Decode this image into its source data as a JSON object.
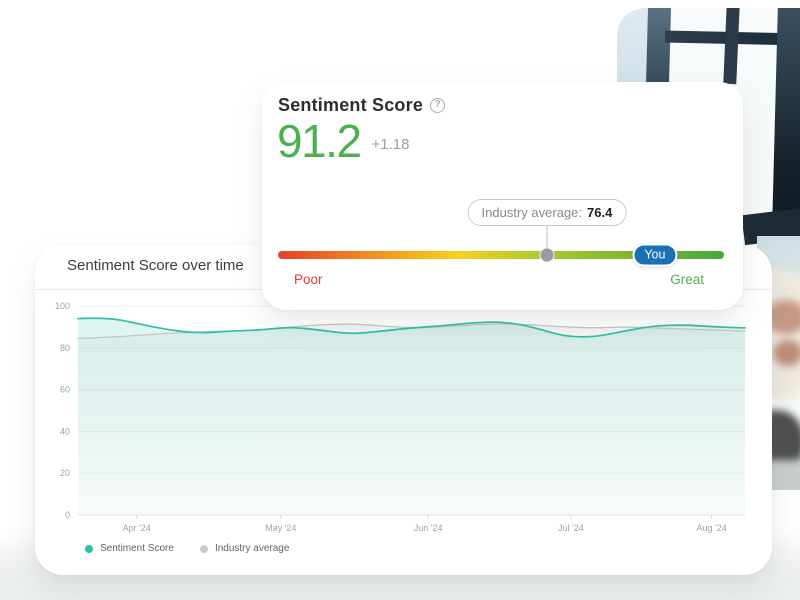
{
  "colors": {
    "accent-green": "#4caf50",
    "accent-red": "#e53935",
    "accent-blue": "#1a70b4",
    "teal": "#2fbfa8",
    "gray-line": "#c6c6c6"
  },
  "score_card": {
    "title": "Sentiment Score",
    "help_icon": "?",
    "score": "91.2",
    "delta": "+1.18",
    "tooltip": {
      "label": "Industry average:",
      "value": "76.4"
    },
    "slider": {
      "left_label": "Poor",
      "right_label": "Great",
      "you_label": "You",
      "marker_pos_pct": 60.3,
      "you_pos_pct": 84.5,
      "gradient": [
        "#e8402c",
        "#f08a1d",
        "#f6d31c",
        "#a9c930",
        "#7ab62e",
        "#43a93f"
      ]
    }
  },
  "chart_card": {
    "title": "Sentiment Score over time",
    "legend": [
      {
        "label": "Sentiment Score",
        "color": "#2abfa7"
      },
      {
        "label": "Industry average",
        "color": "#cccccc"
      }
    ]
  },
  "chart_data": {
    "type": "line",
    "title": "Sentiment Score over time",
    "ylim": [
      0,
      100
    ],
    "y_ticks": [
      0,
      20,
      40,
      60,
      80,
      100
    ],
    "x_tick_labels": [
      "Apr '24",
      "May '24",
      "Jun '24",
      "Jul '24",
      "Aug '24"
    ],
    "x_tick_pos": [
      0.088,
      0.304,
      0.525,
      0.739,
      0.95
    ],
    "grid": true,
    "legend_position": "bottom-left",
    "series": [
      {
        "name": "Sentiment Score",
        "color": "#2fbfa8",
        "fill_top": "rgba(47,191,168,0.16)",
        "fill_bottom": "rgba(47,191,168,0.03)",
        "values": [
          94,
          94.5,
          91.5,
          88.5,
          87,
          88,
          88.5,
          90,
          88.5,
          86.5,
          88,
          89.5,
          90.5,
          92,
          92.5,
          90,
          85.5,
          85,
          88,
          90.5,
          91,
          90,
          89.5
        ]
      },
      {
        "name": "Industry average",
        "color": "#c6c6c6",
        "fill_top": "rgba(120,130,130,0.08)",
        "fill_bottom": "rgba(120,130,130,0.01)",
        "values": [
          84.5,
          85,
          86,
          87,
          87.5,
          88,
          88.5,
          90,
          91,
          91.5,
          90.5,
          89.5,
          90,
          91,
          91.5,
          91,
          90,
          89.5,
          90,
          89.5,
          89,
          88.5,
          88
        ]
      }
    ]
  }
}
